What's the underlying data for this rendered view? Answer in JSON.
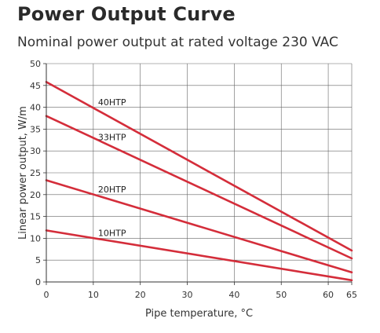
{
  "chart_data": {
    "type": "line",
    "title": "Power Output Curve",
    "subtitle": "Nominal power output at rated voltage 230 VAC",
    "xlabel": "Pipe temperature, °C",
    "ylabel": "Linear power output, W/m",
    "xlim": [
      0,
      65
    ],
    "ylim": [
      0,
      50
    ],
    "xticks": [
      0,
      10,
      20,
      30,
      40,
      50,
      60,
      65
    ],
    "yticks": [
      0,
      5,
      10,
      15,
      20,
      25,
      30,
      35,
      40,
      45,
      50
    ],
    "grid": true,
    "line_color": "#d42d3a",
    "series": [
      {
        "name": "40HTP",
        "x": [
          0,
          65
        ],
        "y": [
          45.8,
          7.2
        ],
        "label_at": [
          11,
          40.5
        ]
      },
      {
        "name": "33HTP",
        "x": [
          0,
          65
        ],
        "y": [
          38.0,
          5.4
        ],
        "label_at": [
          11,
          32.5
        ]
      },
      {
        "name": "20HTP",
        "x": [
          0,
          65
        ],
        "y": [
          23.3,
          2.2
        ],
        "label_at": [
          11,
          20.5
        ]
      },
      {
        "name": "10HTP",
        "x": [
          0,
          65
        ],
        "y": [
          11.8,
          0.4
        ],
        "label_at": [
          11,
          10.5
        ]
      }
    ]
  }
}
